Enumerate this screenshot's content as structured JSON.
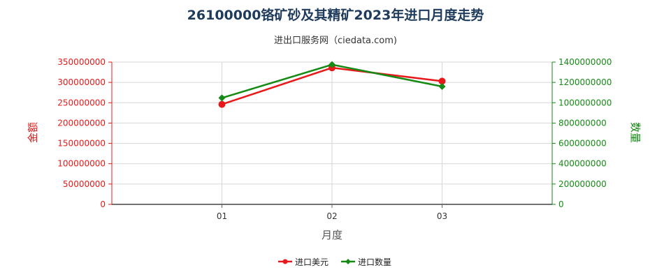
{
  "chart_data": {
    "type": "line",
    "title": "26100000铬矿砂及其精矿2023年进口月度走势",
    "subtitle": "进出口服务网（ciedata.com)",
    "xlabel": "月度",
    "ylabel_left": "金额",
    "ylabel_right": "数量",
    "categories": [
      "01",
      "02",
      "03"
    ],
    "left_axis": {
      "ylim": [
        0,
        350000000
      ],
      "ticks": [
        "0",
        "50000000",
        "100000000",
        "150000000",
        "200000000",
        "250000000",
        "300000000",
        "350000000"
      ],
      "color": "#e8191a"
    },
    "right_axis": {
      "ylim": [
        0,
        1400000000
      ],
      "ticks": [
        "0",
        "200000000",
        "400000000",
        "600000000",
        "800000000",
        "1000000000",
        "1200000000",
        "1400000000"
      ],
      "color": "#158a15"
    },
    "series": [
      {
        "name": "进口美元",
        "axis": "left",
        "color": "#e8191a",
        "marker": "circle",
        "values": [
          246000000,
          336000000,
          303000000
        ]
      },
      {
        "name": "进口数量",
        "axis": "right",
        "color": "#158a15",
        "marker": "diamond",
        "values": [
          1047000000,
          1375000000,
          1160000000
        ]
      }
    ],
    "grid": true,
    "legend_position": "bottom-center"
  }
}
